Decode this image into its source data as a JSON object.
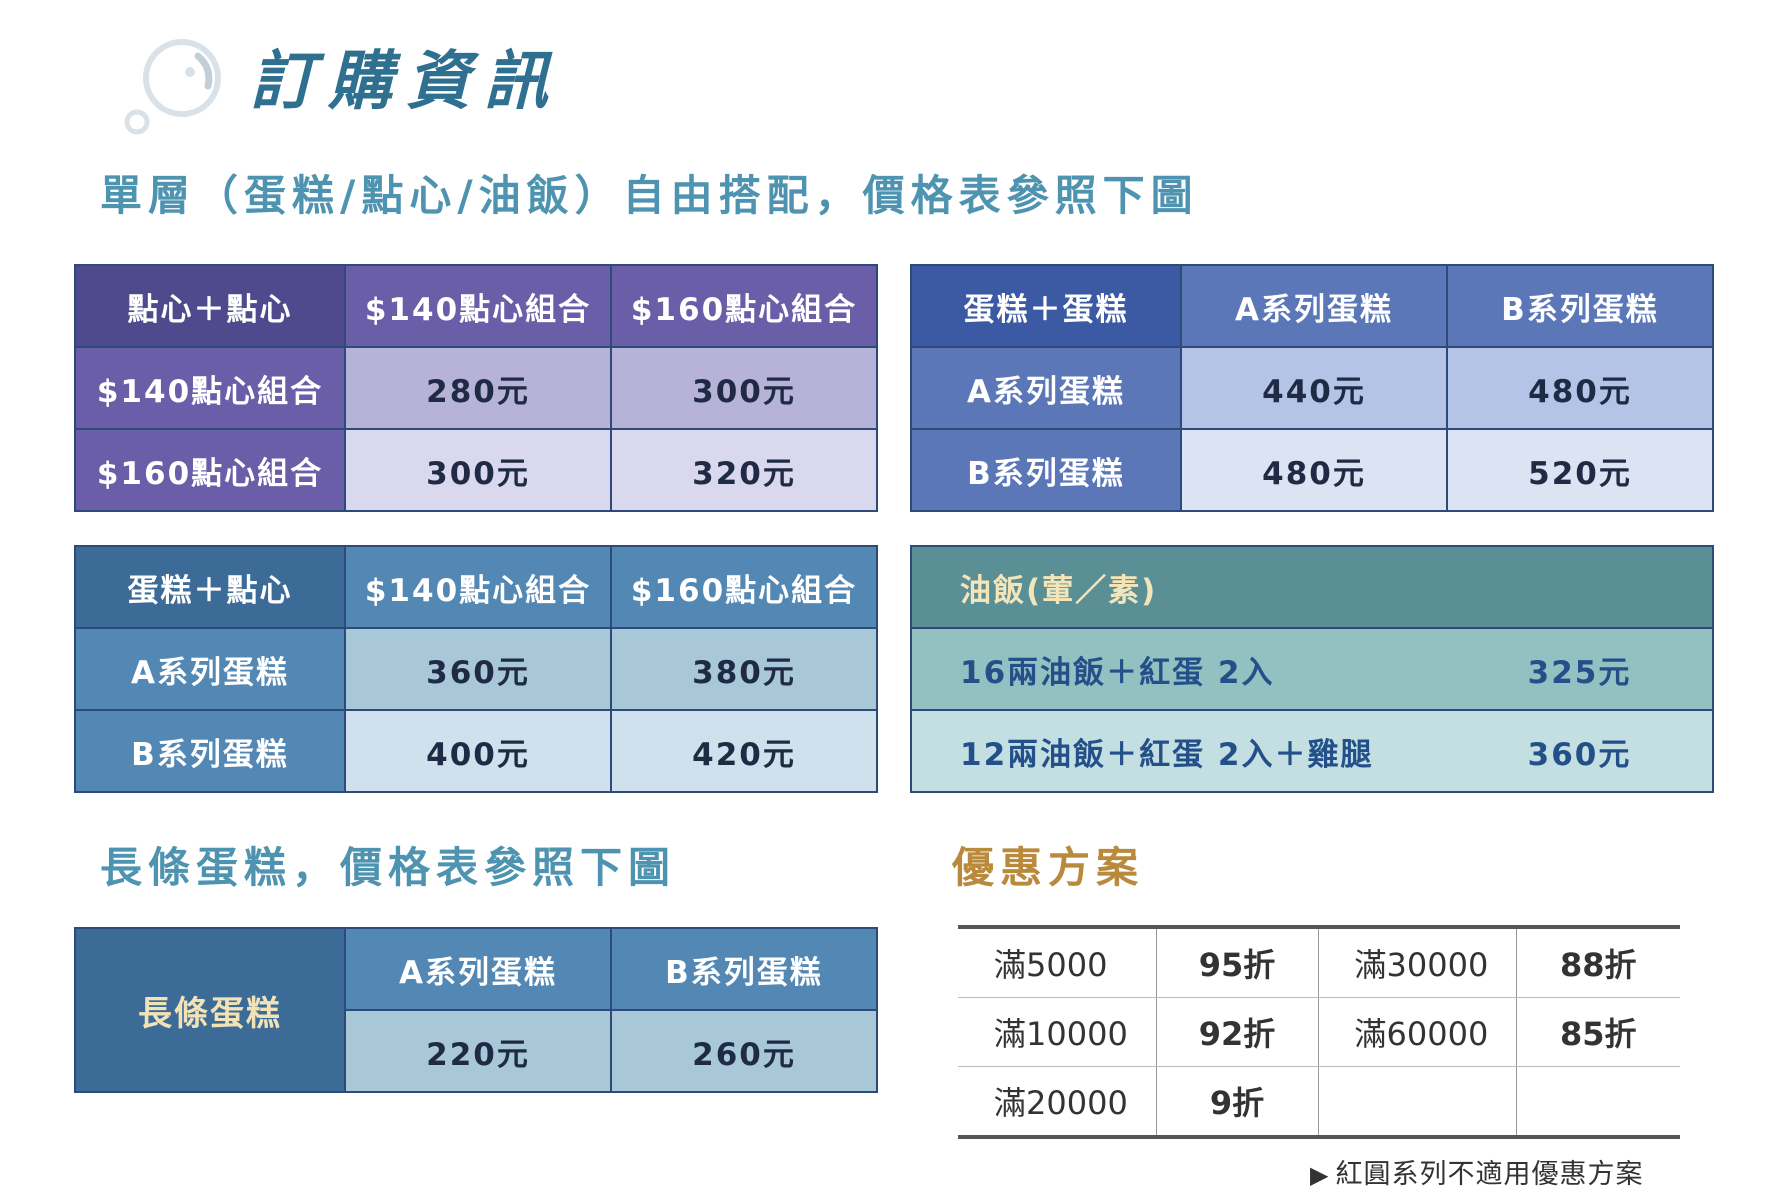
{
  "header": {
    "title": "訂購資訊",
    "single_layer_heading": "單層（蛋糕/點心/油飯）自由搭配，價格表參照下圖",
    "long_cake_heading": "長條蛋糕，價格表參照下圖",
    "discount_heading": "優惠方案"
  },
  "colors": {
    "title": "#2f6f8f",
    "heading": "#4e93b0",
    "discount_heading": "#b98a3c",
    "purple": "#6b5ea8",
    "blue": "#5c77b8",
    "steel": "#5488b4",
    "teal": "#5a8f96"
  },
  "snack_snack": {
    "corner": "點心＋點心",
    "columns": [
      "$140點心組合",
      "$160點心組合"
    ],
    "rows": [
      {
        "label": "$140點心組合",
        "values": [
          "280元",
          "300元"
        ]
      },
      {
        "label": "$160點心組合",
        "values": [
          "300元",
          "320元"
        ]
      }
    ]
  },
  "cake_cake": {
    "corner": "蛋糕＋蛋糕",
    "columns": [
      "A系列蛋糕",
      "B系列蛋糕"
    ],
    "rows": [
      {
        "label": "A系列蛋糕",
        "values": [
          "440元",
          "480元"
        ]
      },
      {
        "label": "B系列蛋糕",
        "values": [
          "480元",
          "520元"
        ]
      }
    ]
  },
  "cake_snack": {
    "corner": "蛋糕＋點心",
    "columns": [
      "$140點心組合",
      "$160點心組合"
    ],
    "rows": [
      {
        "label": "A系列蛋糕",
        "values": [
          "360元",
          "380元"
        ]
      },
      {
        "label": "B系列蛋糕",
        "values": [
          "400元",
          "420元"
        ]
      }
    ]
  },
  "oil_rice": {
    "heading": "油飯(葷／素)",
    "items": [
      {
        "name": "16兩油飯＋紅蛋 2入",
        "price": "325元"
      },
      {
        "name": "12兩油飯＋紅蛋 2入＋雞腿",
        "price": "360元"
      }
    ]
  },
  "long_cake": {
    "corner": "長條蛋糕",
    "columns": [
      "A系列蛋糕",
      "B系列蛋糕"
    ],
    "values": [
      "220元",
      "260元"
    ]
  },
  "discount": {
    "rows": [
      [
        {
          "threshold": "滿5000",
          "rate": "95折"
        },
        {
          "threshold": "滿30000",
          "rate": "88折"
        }
      ],
      [
        {
          "threshold": "滿10000",
          "rate": "92折"
        },
        {
          "threshold": "滿60000",
          "rate": "85折"
        }
      ],
      [
        {
          "threshold": "滿20000",
          "rate": "9折"
        },
        {
          "threshold": "",
          "rate": ""
        }
      ]
    ],
    "note": "紅圓系列不適用優惠方案"
  }
}
